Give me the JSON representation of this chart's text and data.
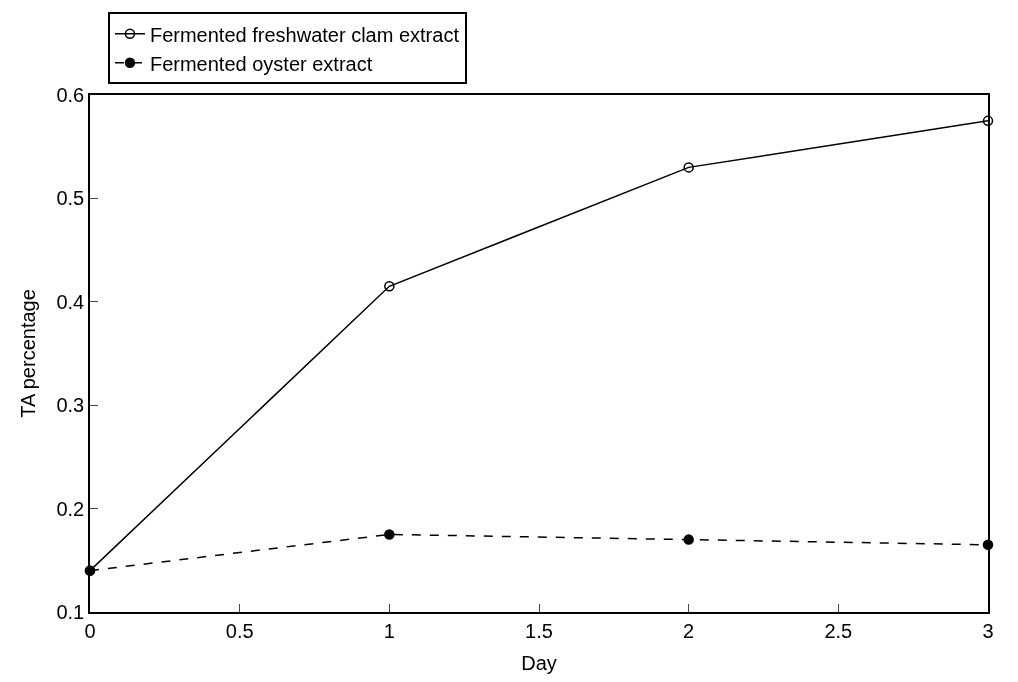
{
  "chart_data": {
    "type": "line",
    "xlabel": "Day",
    "ylabel": "TA percentage",
    "x": [
      0,
      1,
      2,
      3
    ],
    "series": [
      {
        "name": "Fermented freshwater clam extract",
        "color": "#000000",
        "values": [
          0.14,
          0.415,
          0.53,
          0.575
        ],
        "line_style": "solid"
      },
      {
        "name": "Fermented oyster extract",
        "color": "#000000",
        "values": [
          0.14,
          0.175,
          0.17,
          0.165
        ],
        "line_style": "dashed"
      }
    ],
    "xlim": [
      0,
      3
    ],
    "xticks": [
      0,
      0.5,
      1,
      1.5,
      2,
      2.5,
      3
    ],
    "ylim": [
      0.1,
      0.6
    ],
    "yticks": [
      0.1,
      0.2,
      0.3,
      0.4,
      0.5,
      0.6
    ],
    "legend": "top left",
    "marker": "circle"
  }
}
